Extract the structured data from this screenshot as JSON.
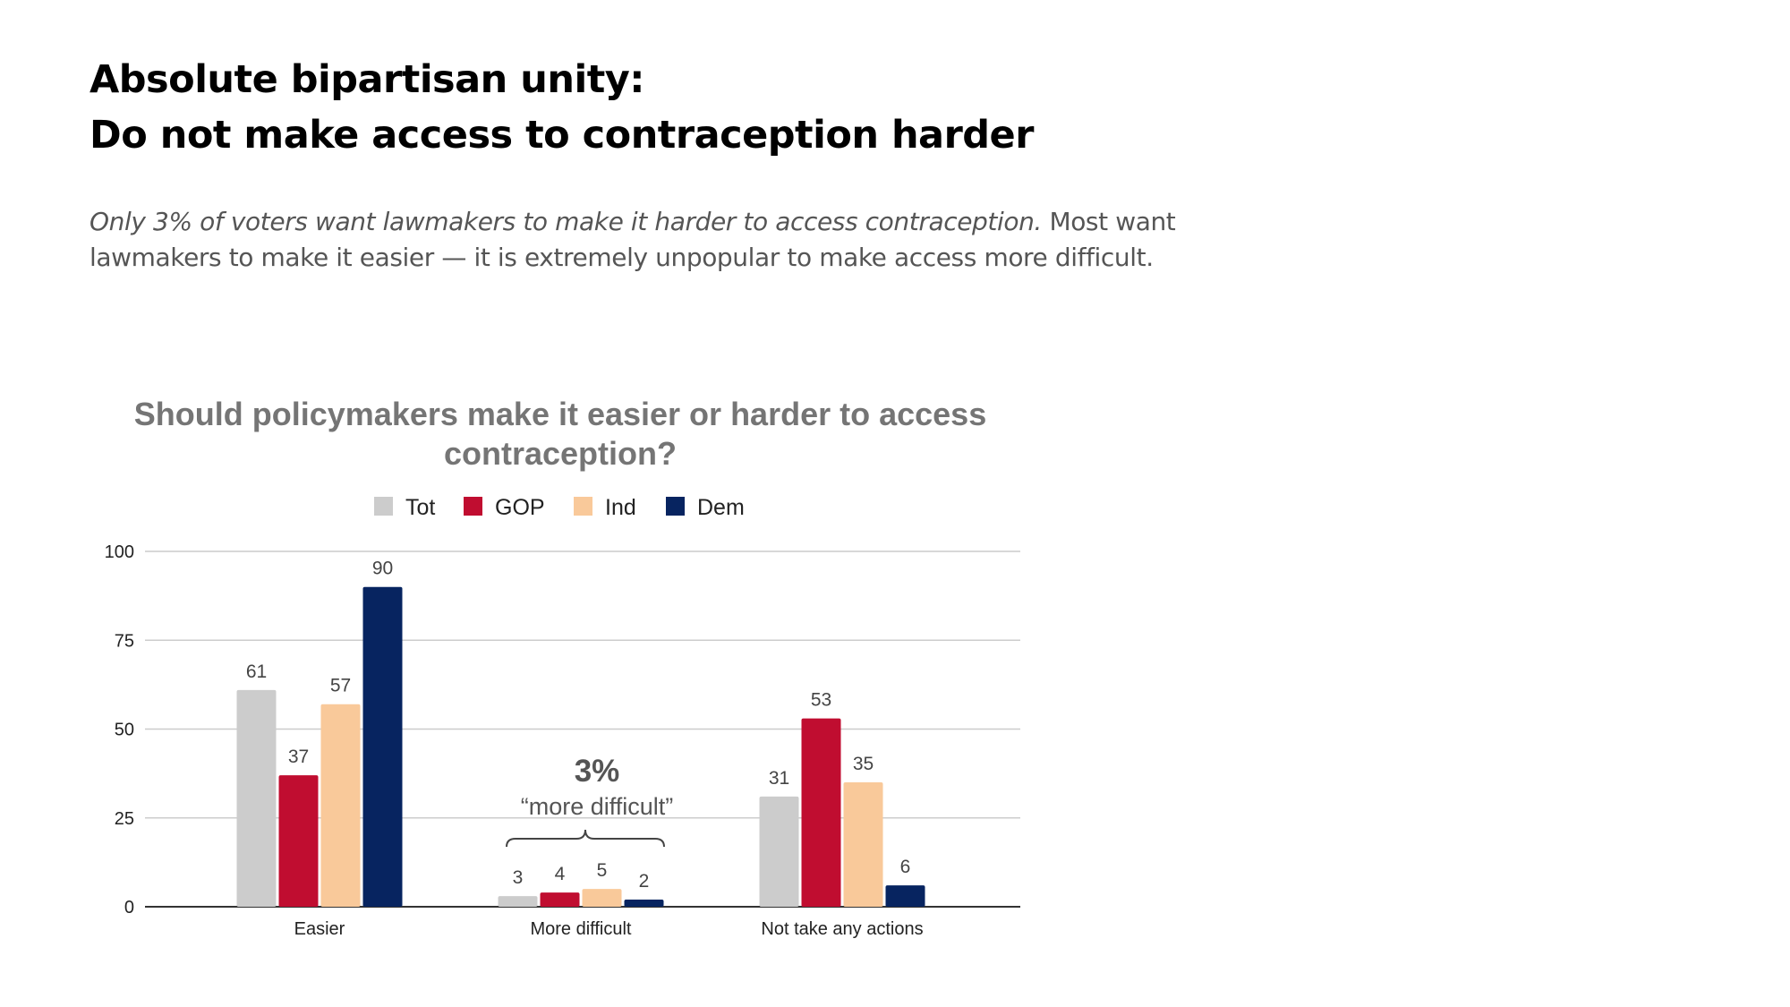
{
  "headline": {
    "line1": "Absolute bipartisan unity:",
    "line2": "Do not make access to contraception harder"
  },
  "subtitle": {
    "italic": "Only 3% of voters want lawmakers to make it harder to access contraception.",
    "regular": " Most want lawmakers to make it easier — it is extremely unpopular to make access more difficult."
  },
  "chart_data": {
    "type": "bar",
    "title_line1": "Should policymakers make it easier or harder to access",
    "title_line2": "contraception?",
    "categories": [
      "Easier",
      "More difficult",
      "Not take any actions"
    ],
    "series": [
      {
        "name": "Tot",
        "color": "#cccccc",
        "values": [
          61,
          3,
          31
        ]
      },
      {
        "name": "GOP",
        "color": "#c00d30",
        "values": [
          37,
          4,
          53
        ]
      },
      {
        "name": "Ind",
        "color": "#f9c99a",
        "values": [
          57,
          5,
          35
        ]
      },
      {
        "name": "Dem",
        "color": "#072460",
        "values": [
          90,
          2,
          6
        ]
      }
    ],
    "ylim": [
      0,
      100
    ],
    "yticks": [
      0,
      25,
      50,
      75,
      100
    ],
    "grid": true,
    "legend": "top-center",
    "xlabel": "",
    "ylabel": "",
    "annotation": {
      "big": "3%",
      "small": "“more difficult”",
      "category": "More difficult"
    }
  }
}
